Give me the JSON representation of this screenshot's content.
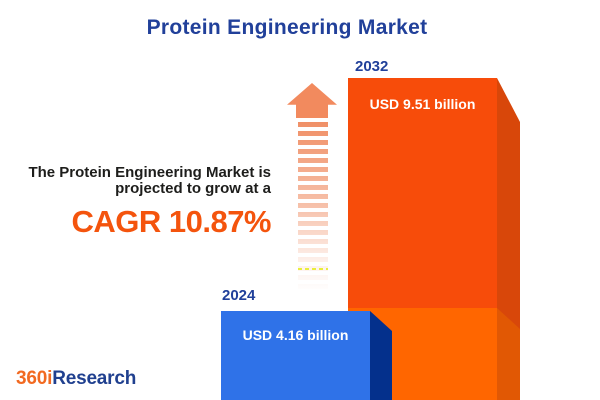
{
  "title": "Protein Engineering Market",
  "annotation": {
    "line1": "The Protein Engineering Market is",
    "line2": "projected to grow at a",
    "cagr": "CAGR 10.87%"
  },
  "chart_data": {
    "type": "bar",
    "title": "Protein Engineering Market",
    "categories": [
      "2024",
      "2032"
    ],
    "values": [
      4.16,
      9.51
    ],
    "unit": "USD billion",
    "value_labels": [
      "USD 4.16 billion",
      "USD 9.51 billion"
    ],
    "cagr_percent": 10.87,
    "bar_colors": [
      "#2f72e8",
      "#f74c0a"
    ],
    "legend": "none",
    "grid": false,
    "orientation": "vertical",
    "annotation": "The Protein Engineering Market is projected to grow at a CAGR 10.87%"
  },
  "icons": {
    "growth_arrow": "dashed-up-arrow"
  },
  "logo": {
    "part1": "360i",
    "part2": "Research"
  },
  "colors": {
    "title_blue": "#21409a",
    "cagr_orange": "#f4540d",
    "bar_2024_front": "#2f72e8",
    "bar_2024_side": "#04308c",
    "bar_2032_front_upper": "#f74c0a",
    "bar_2032_front_lower": "#ff6600",
    "bar_2032_side_upper": "#d8470a",
    "bar_2032_side_lower": "#e15804",
    "arrow_orange": "#f28a5e",
    "text_dark": "#1d1d1b",
    "logo_orange": "#f26a21",
    "logo_blue": "#20408f"
  }
}
